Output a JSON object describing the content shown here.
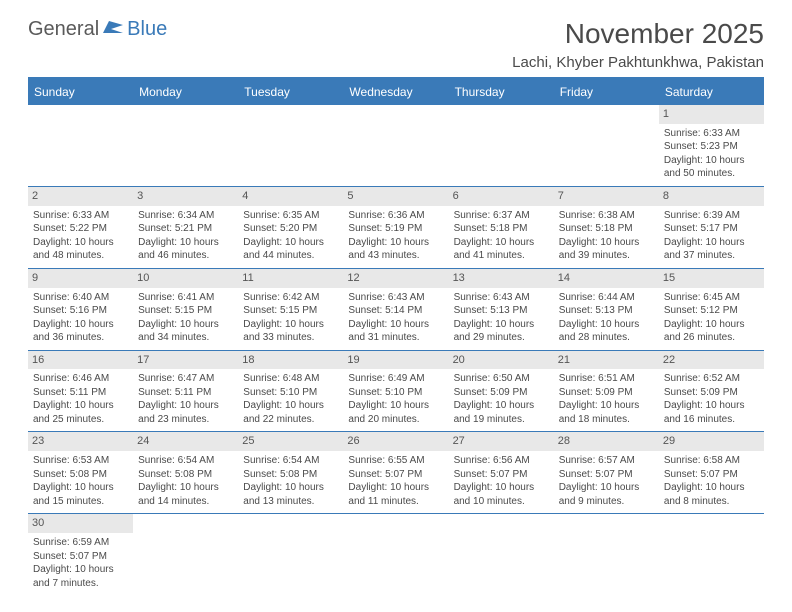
{
  "logo": {
    "text1": "General",
    "text2": "Blue"
  },
  "title": "November 2025",
  "location": "Lachi, Khyber Pakhtunkhwa, Pakistan",
  "colors": {
    "header_bg": "#3a7ab8",
    "header_text": "#ffffff",
    "daynum_bg": "#e8e8e8",
    "text": "#4a4a4a",
    "divider": "#3a7ab8"
  },
  "weekdays": [
    "Sunday",
    "Monday",
    "Tuesday",
    "Wednesday",
    "Thursday",
    "Friday",
    "Saturday"
  ],
  "weeks": [
    [
      null,
      null,
      null,
      null,
      null,
      null,
      {
        "n": "1",
        "sr": "Sunrise: 6:33 AM",
        "ss": "Sunset: 5:23 PM",
        "dl": "Daylight: 10 hours and 50 minutes."
      }
    ],
    [
      {
        "n": "2",
        "sr": "Sunrise: 6:33 AM",
        "ss": "Sunset: 5:22 PM",
        "dl": "Daylight: 10 hours and 48 minutes."
      },
      {
        "n": "3",
        "sr": "Sunrise: 6:34 AM",
        "ss": "Sunset: 5:21 PM",
        "dl": "Daylight: 10 hours and 46 minutes."
      },
      {
        "n": "4",
        "sr": "Sunrise: 6:35 AM",
        "ss": "Sunset: 5:20 PM",
        "dl": "Daylight: 10 hours and 44 minutes."
      },
      {
        "n": "5",
        "sr": "Sunrise: 6:36 AM",
        "ss": "Sunset: 5:19 PM",
        "dl": "Daylight: 10 hours and 43 minutes."
      },
      {
        "n": "6",
        "sr": "Sunrise: 6:37 AM",
        "ss": "Sunset: 5:18 PM",
        "dl": "Daylight: 10 hours and 41 minutes."
      },
      {
        "n": "7",
        "sr": "Sunrise: 6:38 AM",
        "ss": "Sunset: 5:18 PM",
        "dl": "Daylight: 10 hours and 39 minutes."
      },
      {
        "n": "8",
        "sr": "Sunrise: 6:39 AM",
        "ss": "Sunset: 5:17 PM",
        "dl": "Daylight: 10 hours and 37 minutes."
      }
    ],
    [
      {
        "n": "9",
        "sr": "Sunrise: 6:40 AM",
        "ss": "Sunset: 5:16 PM",
        "dl": "Daylight: 10 hours and 36 minutes."
      },
      {
        "n": "10",
        "sr": "Sunrise: 6:41 AM",
        "ss": "Sunset: 5:15 PM",
        "dl": "Daylight: 10 hours and 34 minutes."
      },
      {
        "n": "11",
        "sr": "Sunrise: 6:42 AM",
        "ss": "Sunset: 5:15 PM",
        "dl": "Daylight: 10 hours and 33 minutes."
      },
      {
        "n": "12",
        "sr": "Sunrise: 6:43 AM",
        "ss": "Sunset: 5:14 PM",
        "dl": "Daylight: 10 hours and 31 minutes."
      },
      {
        "n": "13",
        "sr": "Sunrise: 6:43 AM",
        "ss": "Sunset: 5:13 PM",
        "dl": "Daylight: 10 hours and 29 minutes."
      },
      {
        "n": "14",
        "sr": "Sunrise: 6:44 AM",
        "ss": "Sunset: 5:13 PM",
        "dl": "Daylight: 10 hours and 28 minutes."
      },
      {
        "n": "15",
        "sr": "Sunrise: 6:45 AM",
        "ss": "Sunset: 5:12 PM",
        "dl": "Daylight: 10 hours and 26 minutes."
      }
    ],
    [
      {
        "n": "16",
        "sr": "Sunrise: 6:46 AM",
        "ss": "Sunset: 5:11 PM",
        "dl": "Daylight: 10 hours and 25 minutes."
      },
      {
        "n": "17",
        "sr": "Sunrise: 6:47 AM",
        "ss": "Sunset: 5:11 PM",
        "dl": "Daylight: 10 hours and 23 minutes."
      },
      {
        "n": "18",
        "sr": "Sunrise: 6:48 AM",
        "ss": "Sunset: 5:10 PM",
        "dl": "Daylight: 10 hours and 22 minutes."
      },
      {
        "n": "19",
        "sr": "Sunrise: 6:49 AM",
        "ss": "Sunset: 5:10 PM",
        "dl": "Daylight: 10 hours and 20 minutes."
      },
      {
        "n": "20",
        "sr": "Sunrise: 6:50 AM",
        "ss": "Sunset: 5:09 PM",
        "dl": "Daylight: 10 hours and 19 minutes."
      },
      {
        "n": "21",
        "sr": "Sunrise: 6:51 AM",
        "ss": "Sunset: 5:09 PM",
        "dl": "Daylight: 10 hours and 18 minutes."
      },
      {
        "n": "22",
        "sr": "Sunrise: 6:52 AM",
        "ss": "Sunset: 5:09 PM",
        "dl": "Daylight: 10 hours and 16 minutes."
      }
    ],
    [
      {
        "n": "23",
        "sr": "Sunrise: 6:53 AM",
        "ss": "Sunset: 5:08 PM",
        "dl": "Daylight: 10 hours and 15 minutes."
      },
      {
        "n": "24",
        "sr": "Sunrise: 6:54 AM",
        "ss": "Sunset: 5:08 PM",
        "dl": "Daylight: 10 hours and 14 minutes."
      },
      {
        "n": "25",
        "sr": "Sunrise: 6:54 AM",
        "ss": "Sunset: 5:08 PM",
        "dl": "Daylight: 10 hours and 13 minutes."
      },
      {
        "n": "26",
        "sr": "Sunrise: 6:55 AM",
        "ss": "Sunset: 5:07 PM",
        "dl": "Daylight: 10 hours and 11 minutes."
      },
      {
        "n": "27",
        "sr": "Sunrise: 6:56 AM",
        "ss": "Sunset: 5:07 PM",
        "dl": "Daylight: 10 hours and 10 minutes."
      },
      {
        "n": "28",
        "sr": "Sunrise: 6:57 AM",
        "ss": "Sunset: 5:07 PM",
        "dl": "Daylight: 10 hours and 9 minutes."
      },
      {
        "n": "29",
        "sr": "Sunrise: 6:58 AM",
        "ss": "Sunset: 5:07 PM",
        "dl": "Daylight: 10 hours and 8 minutes."
      }
    ],
    [
      {
        "n": "30",
        "sr": "Sunrise: 6:59 AM",
        "ss": "Sunset: 5:07 PM",
        "dl": "Daylight: 10 hours and 7 minutes."
      },
      null,
      null,
      null,
      null,
      null,
      null
    ]
  ]
}
